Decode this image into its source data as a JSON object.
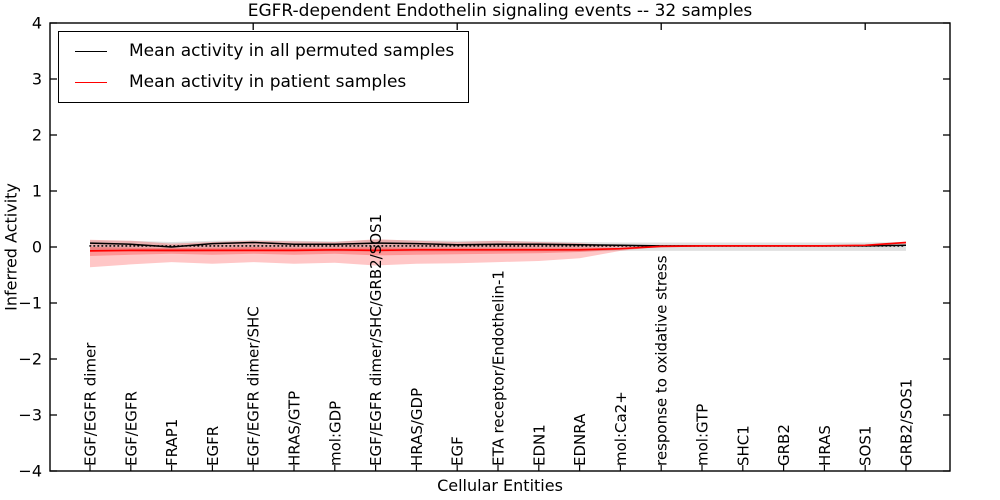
{
  "chart_data": {
    "type": "line",
    "title": "EGFR-dependent Endothelin signaling events -- 32 samples",
    "xlabel": "Cellular Entities",
    "ylabel": "Inferred Activity",
    "ylim": [
      -4,
      4
    ],
    "yticks": [
      -4,
      -3,
      -2,
      -1,
      0,
      1,
      2,
      3,
      4
    ],
    "ytick_labels": [
      "−4",
      "−3",
      "−2",
      "−1",
      "0",
      "1",
      "2",
      "3",
      "4"
    ],
    "grid": false,
    "frame_color": "#000000",
    "legend": {
      "position": "upper-left",
      "entries": [
        {
          "label": "Mean activity in all permuted samples",
          "color": "#000000",
          "style": "solid"
        },
        {
          "label": "Mean activity in patient samples",
          "color": "#ff0000",
          "style": "solid"
        }
      ]
    },
    "categories": [
      "EGF/EGFR dimer",
      "EGF/EGFR",
      "FRAP1",
      "EGFR",
      "EGF/EGFR dimer/SHC",
      "HRAS/GTP",
      "mol:GDP",
      "EGF/EGFR dimer/SHC/GRB2/SOS1",
      "HRAS/GDP",
      "EGF",
      "ETA receptor/Endothelin-1",
      "EDN1",
      "EDNRA",
      "mol:Ca2+",
      "response to oxidative stress",
      "mol:GTP",
      "SHC1",
      "GRB2",
      "HRAS",
      "SOS1",
      "GRB2/SOS1"
    ],
    "top_tick_indices": [
      4,
      9,
      14,
      19
    ],
    "series": [
      {
        "name": "Mean activity in all permuted samples",
        "color": "#000000",
        "style": "solid",
        "width": 1.5,
        "values": [
          0.07,
          0.05,
          0.0,
          0.06,
          0.08,
          0.05,
          0.05,
          0.07,
          0.06,
          0.04,
          0.05,
          0.05,
          0.04,
          0.03,
          0.02,
          0.02,
          0.02,
          0.02,
          0.02,
          0.02,
          0.03
        ]
      },
      {
        "name": "Permuted reference (dotted)",
        "color": "#000000",
        "style": "dotted",
        "width": 1.6,
        "values": [
          0.02,
          0.02,
          0.02,
          0.02,
          0.02,
          0.02,
          0.02,
          0.02,
          0.02,
          0.02,
          0.02,
          0.02,
          0.02,
          0.02,
          0.02,
          0.02,
          0.02,
          0.02,
          0.02,
          0.02,
          0.02
        ]
      },
      {
        "name": "Mean activity in patient samples",
        "color": "#ff0000",
        "style": "solid",
        "width": 1.7,
        "values": [
          -0.07,
          -0.06,
          -0.06,
          -0.06,
          -0.06,
          -0.06,
          -0.05,
          -0.06,
          -0.05,
          -0.05,
          -0.05,
          -0.05,
          -0.05,
          -0.03,
          0.01,
          0.02,
          0.02,
          0.02,
          0.02,
          0.03,
          0.08
        ]
      }
    ],
    "bands": [
      {
        "name": "permuted-sample-range",
        "color": "#000000",
        "opacity": 0.12,
        "top": [
          0.12,
          0.11,
          0.09,
          0.11,
          0.12,
          0.11,
          0.1,
          0.13,
          0.12,
          0.11,
          0.11,
          0.1,
          0.09,
          0.08,
          0.08,
          0.08,
          0.08,
          0.08,
          0.08,
          0.08,
          0.09
        ],
        "bottom": [
          -0.08,
          -0.08,
          -0.09,
          -0.08,
          -0.07,
          -0.08,
          -0.08,
          -0.08,
          -0.08,
          -0.08,
          -0.08,
          -0.08,
          -0.08,
          -0.07,
          -0.07,
          -0.07,
          -0.07,
          -0.07,
          -0.07,
          -0.07,
          -0.07
        ]
      },
      {
        "name": "patient-range-outer",
        "color": "#ff0000",
        "opacity": 0.22,
        "top": [
          0.13,
          0.11,
          0.06,
          0.09,
          0.11,
          0.1,
          0.09,
          0.14,
          0.11,
          0.09,
          0.11,
          0.09,
          0.07,
          0.02,
          0.01,
          0.02,
          0.02,
          0.02,
          0.02,
          0.03,
          0.08
        ],
        "bottom": [
          -0.36,
          -0.31,
          -0.27,
          -0.3,
          -0.27,
          -0.3,
          -0.28,
          -0.33,
          -0.3,
          -0.29,
          -0.27,
          -0.25,
          -0.2,
          -0.07,
          0.01,
          0.02,
          0.02,
          0.02,
          0.02,
          0.03,
          0.08
        ]
      },
      {
        "name": "patient-range-inner",
        "color": "#ff0000",
        "opacity": 0.25,
        "top": [
          0.0,
          -0.01,
          -0.02,
          -0.01,
          0.0,
          -0.01,
          -0.01,
          0.0,
          -0.01,
          -0.01,
          -0.01,
          -0.01,
          -0.01,
          -0.02,
          0.01,
          0.02,
          0.02,
          0.02,
          0.02,
          0.03,
          0.08
        ],
        "bottom": [
          -0.16,
          -0.14,
          -0.12,
          -0.14,
          -0.12,
          -0.14,
          -0.12,
          -0.15,
          -0.14,
          -0.13,
          -0.12,
          -0.11,
          -0.09,
          -0.05,
          0.01,
          0.02,
          0.02,
          0.02,
          0.02,
          0.03,
          0.08
        ]
      }
    ]
  }
}
